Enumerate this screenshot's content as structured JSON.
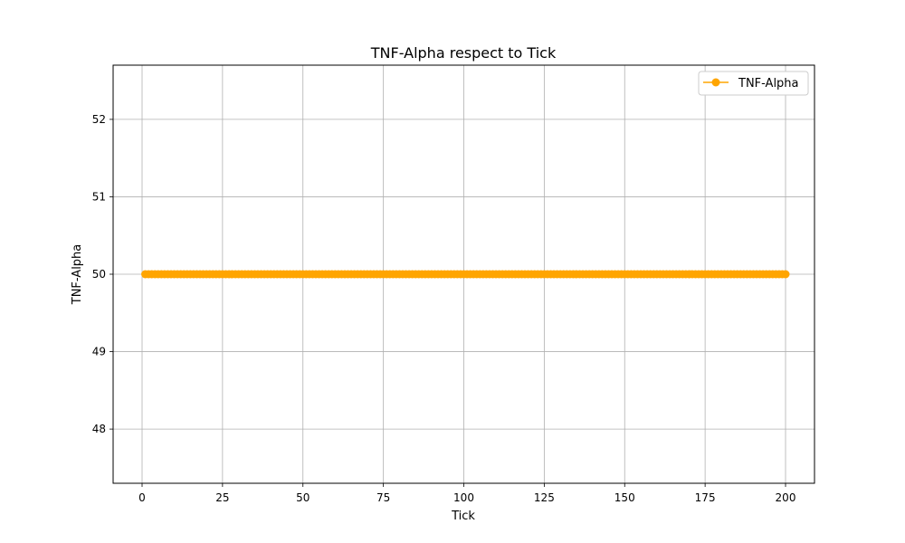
{
  "chart_data": {
    "type": "line",
    "title": "TNF-Alpha respect to Tick",
    "xlabel": "Tick",
    "ylabel": "TNF-Alpha",
    "xlim": [
      -9,
      209
    ],
    "ylim": [
      47.3,
      52.7
    ],
    "xticks": [
      0,
      25,
      50,
      75,
      100,
      125,
      150,
      175,
      200
    ],
    "yticks": [
      48,
      49,
      50,
      51,
      52
    ],
    "grid": true,
    "legend_position": "top-right",
    "series": [
      {
        "name": "TNF-Alpha",
        "color": "#FFA500",
        "marker": "circle",
        "x_start": 1,
        "x_end": 200,
        "x_step": 1,
        "constant_value": 50
      }
    ]
  }
}
